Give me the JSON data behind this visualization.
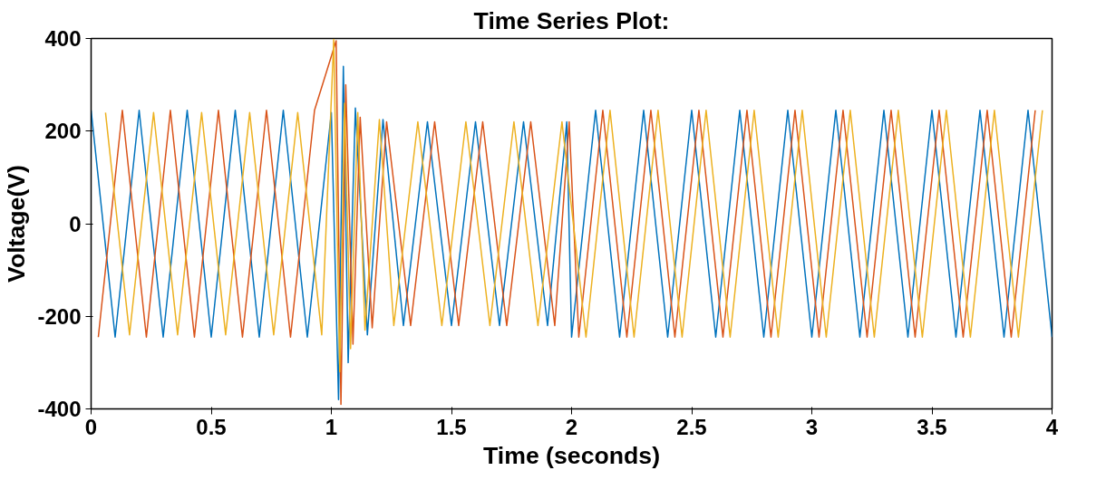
{
  "chart_data": {
    "type": "line",
    "title": "Time Series Plot:",
    "xlabel": "Time (seconds)",
    "ylabel": "Voltage(V)",
    "xlim": [
      0,
      4
    ],
    "xticks": [
      0,
      0.5,
      1,
      1.5,
      2,
      2.5,
      3,
      3.5,
      4
    ],
    "ylim": [
      -400,
      400
    ],
    "yticks": [
      -400,
      -200,
      0,
      200,
      400
    ],
    "grid": false,
    "marker": "none",
    "line_style": "solid",
    "series": [
      {
        "color": "#0072bd",
        "x": [
          0,
          0.1,
          0.2,
          0.3,
          0.4,
          0.5,
          0.6,
          0.7,
          0.8,
          0.9,
          1.0,
          1.03,
          1.05,
          1.07,
          1.1,
          1.15,
          1.215,
          1.3,
          1.4,
          1.5,
          1.6,
          1.7,
          1.8,
          1.9,
          1.98,
          2.0,
          2.1,
          2.2,
          2.3,
          2.4,
          2.5,
          2.6,
          2.7,
          2.8,
          2.9,
          3.0,
          3.1,
          3.2,
          3.3,
          3.4,
          3.5,
          3.6,
          3.7,
          3.8,
          3.9,
          4.0
        ],
        "values": [
          245,
          -245,
          245,
          -245,
          245,
          -245,
          245,
          -245,
          245,
          -245,
          240,
          -380,
          340,
          -300,
          250,
          -240,
          225,
          -220,
          220,
          -220,
          220,
          -220,
          220,
          -220,
          220,
          -245,
          245,
          -245,
          245,
          -245,
          245,
          -245,
          245,
          -245,
          245,
          -245,
          245,
          -245,
          245,
          -245,
          245,
          -245,
          245,
          -245,
          245,
          -245
        ]
      },
      {
        "color": "#d95319",
        "x": [
          0.03,
          0.13,
          0.23,
          0.33,
          0.43,
          0.53,
          0.63,
          0.73,
          0.83,
          0.93,
          1.02,
          1.04,
          1.06,
          1.09,
          1.12,
          1.17,
          1.23,
          1.33,
          1.43,
          1.53,
          1.63,
          1.73,
          1.83,
          1.93,
          1.99,
          2.03,
          2.13,
          2.23,
          2.33,
          2.43,
          2.53,
          2.63,
          2.73,
          2.83,
          2.93,
          3.03,
          3.13,
          3.23,
          3.33,
          3.43,
          3.53,
          3.63,
          3.73,
          3.83,
          3.93
        ],
        "values": [
          -245,
          245,
          -245,
          245,
          -245,
          245,
          -245,
          245,
          -245,
          245,
          395,
          -390,
          300,
          -260,
          230,
          -225,
          220,
          -220,
          220,
          -220,
          220,
          -220,
          220,
          -220,
          220,
          -245,
          245,
          -245,
          245,
          -245,
          245,
          -245,
          245,
          -245,
          245,
          -245,
          245,
          -245,
          245,
          -245,
          245,
          -245,
          245,
          -245,
          245
        ]
      },
      {
        "color": "#edb120",
        "x": [
          0.06,
          0.16,
          0.26,
          0.36,
          0.46,
          0.56,
          0.66,
          0.76,
          0.86,
          0.96,
          1.01,
          1.035,
          1.055,
          1.08,
          1.11,
          1.14,
          1.2,
          1.26,
          1.36,
          1.46,
          1.56,
          1.66,
          1.76,
          1.86,
          1.96,
          2.06,
          2.16,
          2.26,
          2.36,
          2.46,
          2.56,
          2.66,
          2.76,
          2.86,
          2.96,
          3.06,
          3.16,
          3.26,
          3.36,
          3.46,
          3.56,
          3.66,
          3.76,
          3.86,
          3.96
        ],
        "values": [
          240,
          -240,
          240,
          -240,
          240,
          -240,
          240,
          -240,
          240,
          -240,
          398,
          -320,
          260,
          -270,
          240,
          -230,
          225,
          -220,
          220,
          -220,
          220,
          -220,
          220,
          -220,
          220,
          -245,
          245,
          -245,
          245,
          -245,
          245,
          -245,
          245,
          -245,
          245,
          -245,
          245,
          -245,
          245,
          -245,
          245,
          -245,
          245,
          -245,
          245
        ]
      }
    ]
  }
}
